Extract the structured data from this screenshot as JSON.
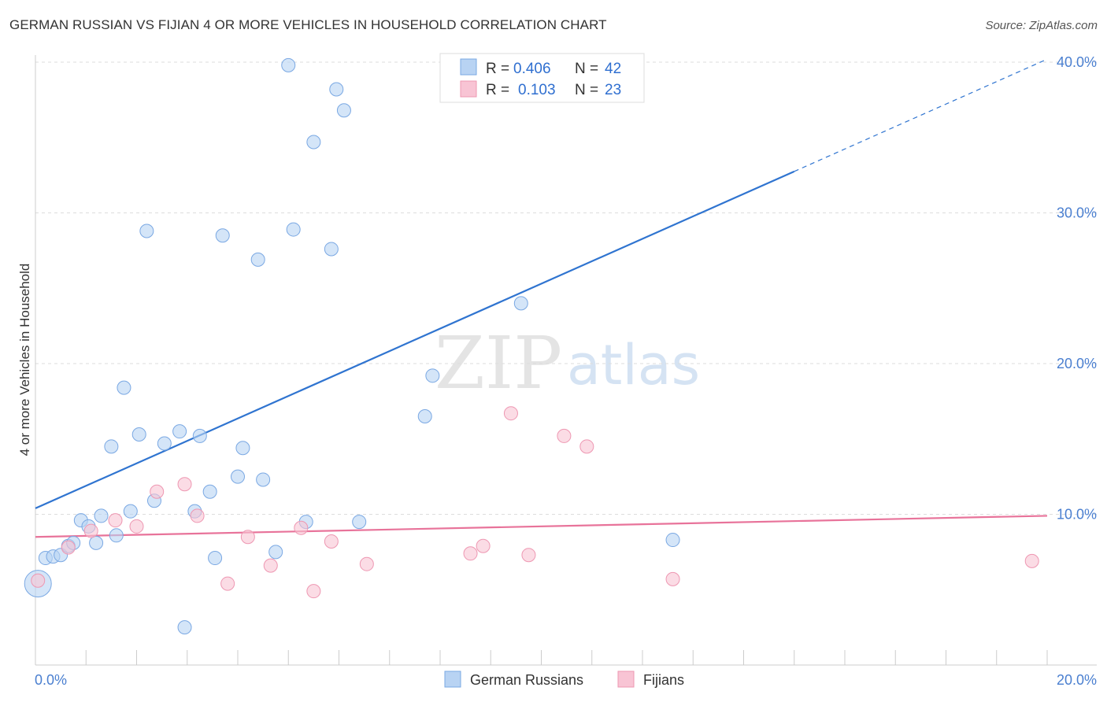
{
  "header": {
    "title": "GERMAN RUSSIAN VS FIJIAN 4 OR MORE VEHICLES IN HOUSEHOLD CORRELATION CHART",
    "source": "Source: ZipAtlas.com"
  },
  "watermark": {
    "part1": "ZIP",
    "part2": "atlas"
  },
  "legend": {
    "items": [
      {
        "r_label": "R = ",
        "r_value": "0.406",
        "n_label": "N = ",
        "n_value": "42"
      },
      {
        "r_label": "R = ",
        "r_value": "0.103",
        "n_label": "N = ",
        "n_value": "23"
      }
    ]
  },
  "colors": {
    "blue_fill": "#b8d3f3",
    "blue_stroke": "#7aa8e3",
    "blue_line": "#2f74d0",
    "pink_fill": "#f8c4d4",
    "pink_stroke": "#ee97b2",
    "pink_line": "#e8739a",
    "grid": "#dddddd",
    "tick_text": "#4a7fd0"
  },
  "chart_data": {
    "type": "scatter",
    "title": "GERMAN RUSSIAN VS FIJIAN 4 OR MORE VEHICLES IN HOUSEHOLD CORRELATION CHART",
    "xlabel": "",
    "ylabel": "4 or more Vehicles in Household",
    "xlim": [
      0,
      20
    ],
    "ylim": [
      0,
      40
    ],
    "x_tick_labels": [
      "0.0%",
      "20.0%"
    ],
    "y_ticks": [
      10,
      20,
      30,
      40
    ],
    "y_tick_labels": [
      "10.0%",
      "20.0%",
      "30.0%",
      "40.0%"
    ],
    "grid": true,
    "legend_position": "top-center",
    "series": [
      {
        "name": "German Russians",
        "r": 0.406,
        "n": 42,
        "points": [
          {
            "x": 0.05,
            "y": 5.4,
            "big": true
          },
          {
            "x": 0.2,
            "y": 7.1
          },
          {
            "x": 0.35,
            "y": 7.2
          },
          {
            "x": 0.5,
            "y": 7.3
          },
          {
            "x": 0.65,
            "y": 7.9
          },
          {
            "x": 0.75,
            "y": 8.1
          },
          {
            "x": 0.9,
            "y": 9.6
          },
          {
            "x": 1.05,
            "y": 9.2
          },
          {
            "x": 1.2,
            "y": 8.1
          },
          {
            "x": 1.3,
            "y": 9.9
          },
          {
            "x": 1.5,
            "y": 14.5
          },
          {
            "x": 1.6,
            "y": 8.6
          },
          {
            "x": 1.75,
            "y": 18.4
          },
          {
            "x": 1.88,
            "y": 10.2
          },
          {
            "x": 2.05,
            "y": 15.3
          },
          {
            "x": 2.2,
            "y": 28.8
          },
          {
            "x": 2.35,
            "y": 10.9
          },
          {
            "x": 2.55,
            "y": 14.7
          },
          {
            "x": 2.85,
            "y": 15.5
          },
          {
            "x": 2.95,
            "y": 2.5
          },
          {
            "x": 3.15,
            "y": 10.2
          },
          {
            "x": 3.25,
            "y": 15.2
          },
          {
            "x": 3.45,
            "y": 11.5
          },
          {
            "x": 3.55,
            "y": 7.1
          },
          {
            "x": 3.7,
            "y": 28.5
          },
          {
            "x": 4.0,
            "y": 12.5
          },
          {
            "x": 4.1,
            "y": 14.4
          },
          {
            "x": 4.4,
            "y": 26.9
          },
          {
            "x": 4.5,
            "y": 12.3
          },
          {
            "x": 4.75,
            "y": 7.5
          },
          {
            "x": 5.0,
            "y": 39.8
          },
          {
            "x": 5.1,
            "y": 28.9
          },
          {
            "x": 5.35,
            "y": 9.5
          },
          {
            "x": 5.5,
            "y": 34.7
          },
          {
            "x": 5.85,
            "y": 27.6
          },
          {
            "x": 5.95,
            "y": 38.2
          },
          {
            "x": 6.1,
            "y": 36.8
          },
          {
            "x": 6.4,
            "y": 9.5
          },
          {
            "x": 7.7,
            "y": 16.5
          },
          {
            "x": 7.85,
            "y": 19.2
          },
          {
            "x": 9.6,
            "y": 24.0
          },
          {
            "x": 12.6,
            "y": 8.3
          }
        ],
        "trend": {
          "x0": 0,
          "y0": 10.4,
          "x_solid_end": 15.0,
          "x1": 20.0,
          "y1": 40.2
        }
      },
      {
        "name": "Fijians",
        "r": 0.103,
        "n": 23,
        "points": [
          {
            "x": 0.05,
            "y": 5.6
          },
          {
            "x": 0.65,
            "y": 7.8
          },
          {
            "x": 1.1,
            "y": 8.9
          },
          {
            "x": 1.58,
            "y": 9.6
          },
          {
            "x": 2.0,
            "y": 9.2
          },
          {
            "x": 2.4,
            "y": 11.5
          },
          {
            "x": 2.95,
            "y": 12.0
          },
          {
            "x": 3.2,
            "y": 9.9
          },
          {
            "x": 3.8,
            "y": 5.4
          },
          {
            "x": 4.2,
            "y": 8.5
          },
          {
            "x": 4.65,
            "y": 6.6
          },
          {
            "x": 5.25,
            "y": 9.1
          },
          {
            "x": 5.5,
            "y": 4.9
          },
          {
            "x": 5.85,
            "y": 8.2
          },
          {
            "x": 6.55,
            "y": 6.7
          },
          {
            "x": 8.6,
            "y": 7.4
          },
          {
            "x": 8.85,
            "y": 7.9
          },
          {
            "x": 9.4,
            "y": 16.7
          },
          {
            "x": 9.75,
            "y": 7.3
          },
          {
            "x": 10.45,
            "y": 15.2
          },
          {
            "x": 10.9,
            "y": 14.5
          },
          {
            "x": 12.6,
            "y": 5.7
          },
          {
            "x": 19.7,
            "y": 6.9
          }
        ],
        "trend": {
          "x0": 0,
          "y0": 8.5,
          "x1": 20.0,
          "y1": 9.9
        }
      }
    ]
  }
}
